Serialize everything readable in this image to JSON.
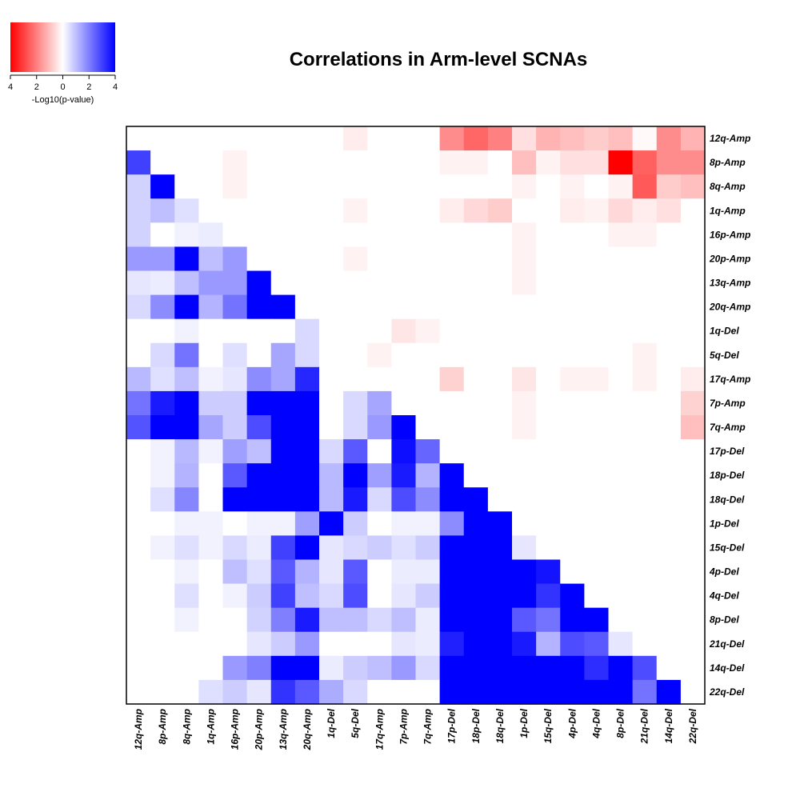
{
  "chart_data": {
    "type": "heatmap",
    "title": "Correlations in Arm-level SCNAs",
    "labels": [
      "12q-Amp",
      "8p-Amp",
      "8q-Amp",
      "1q-Amp",
      "16p-Amp",
      "20p-Amp",
      "13q-Amp",
      "20q-Amp",
      "1q-Del",
      "5q-Del",
      "17q-Amp",
      "7p-Amp",
      "7q-Amp",
      "17p-Del",
      "18p-Del",
      "18q-Del",
      "1p-Del",
      "15q-Del",
      "4p-Del",
      "4q-Del",
      "8p-Del",
      "21q-Del",
      "14q-Del",
      "22q-Del"
    ],
    "value_note": "signed -Log10(p-value): positive = blue, negative = red",
    "values": [
      [
        0,
        0,
        0,
        0,
        0,
        0,
        0,
        0,
        0,
        -0.3,
        0,
        0,
        0,
        -1.8,
        -2.4,
        -2.0,
        -0.5,
        -1.2,
        -1.0,
        -0.8,
        -1.0,
        -0.1,
        -1.8,
        -1.2
      ],
      [
        3.0,
        0,
        0,
        0,
        -0.2,
        0,
        0,
        0,
        0,
        0,
        0,
        0,
        0,
        -0.2,
        -0.2,
        0,
        -1.0,
        -0.2,
        -0.5,
        -0.5,
        -4.0,
        -2.5,
        -1.8,
        -1.8
      ],
      [
        0.7,
        4.0,
        0,
        0,
        -0.2,
        0,
        0,
        0,
        0,
        0,
        0,
        0,
        0,
        0,
        0,
        0,
        -0.2,
        0,
        -0.2,
        0,
        -0.2,
        -2.6,
        -0.8,
        -1.0
      ],
      [
        0.7,
        1.0,
        0.5,
        0,
        0,
        0,
        0,
        0,
        0,
        -0.2,
        0,
        0,
        0,
        -0.3,
        -0.6,
        -0.8,
        0,
        0,
        -0.3,
        -0.2,
        -0.6,
        -0.3,
        -0.5,
        0
      ],
      [
        0.7,
        0,
        0.2,
        0.3,
        0,
        0,
        0,
        0,
        0,
        0,
        0,
        0,
        0,
        0,
        0,
        0,
        -0.2,
        0,
        0,
        0,
        -0.2,
        -0.2,
        0,
        0
      ],
      [
        1.6,
        1.6,
        4.0,
        1.0,
        1.6,
        0,
        0,
        0,
        0,
        -0.2,
        0,
        0,
        0,
        0,
        0,
        0,
        -0.2,
        0,
        0,
        0,
        0,
        0,
        0,
        0
      ],
      [
        0.4,
        0.3,
        1.0,
        1.6,
        1.6,
        4.0,
        0,
        0,
        0,
        0,
        0,
        0,
        0,
        0,
        0,
        0,
        -0.2,
        0,
        0,
        0,
        0,
        0,
        0,
        0
      ],
      [
        0.6,
        1.8,
        4.0,
        1.2,
        2.2,
        4.0,
        4.0,
        0,
        0,
        0,
        0,
        0,
        0,
        0,
        0,
        0,
        0,
        0,
        0,
        0,
        0,
        0,
        0,
        0
      ],
      [
        0,
        0,
        0.2,
        0,
        0,
        0,
        0,
        0.6,
        0,
        0,
        0,
        -0.4,
        -0.2,
        0,
        0,
        0,
        0,
        0,
        0,
        0,
        0,
        0,
        0,
        0
      ],
      [
        0,
        0.6,
        2.2,
        0,
        0.5,
        0,
        1.4,
        0.6,
        0,
        0,
        -0.2,
        0,
        0,
        0,
        0,
        0,
        0,
        0,
        0,
        0,
        0,
        -0.2,
        0,
        0
      ],
      [
        1.1,
        0.5,
        1.0,
        0.2,
        0.4,
        1.8,
        1.4,
        3.4,
        0,
        0,
        0,
        0,
        0,
        -0.7,
        0,
        0,
        -0.4,
        0,
        -0.2,
        -0.2,
        0,
        -0.2,
        0,
        -0.3
      ],
      [
        2.2,
        3.6,
        4.0,
        0.8,
        0.8,
        4.0,
        4.0,
        4.0,
        0,
        0.6,
        1.4,
        0,
        0,
        0,
        0,
        0,
        -0.2,
        0,
        0,
        0,
        0,
        0,
        0,
        -0.7
      ],
      [
        2.7,
        4.0,
        4.0,
        1.4,
        0.8,
        2.8,
        4.0,
        4.0,
        0,
        0.6,
        1.6,
        4.0,
        0,
        0,
        0,
        0,
        -0.2,
        0,
        0,
        0,
        0,
        0,
        0,
        -1.0
      ],
      [
        0,
        0.2,
        1.1,
        0.2,
        1.5,
        1.0,
        4.0,
        4.0,
        0.6,
        2.6,
        0,
        3.8,
        2.4,
        0,
        0,
        0,
        0,
        0,
        0,
        0,
        0,
        0,
        0,
        0
      ],
      [
        0,
        0.2,
        1.2,
        0,
        2.6,
        4.0,
        4.0,
        4.0,
        1.1,
        4.0,
        1.5,
        3.6,
        1.2,
        4.0,
        0,
        0,
        0,
        0,
        0,
        0,
        0,
        0,
        0,
        0
      ],
      [
        0,
        0.5,
        1.9,
        0,
        4.0,
        4.0,
        4.0,
        4.0,
        1.1,
        3.6,
        0.6,
        2.8,
        1.8,
        4.0,
        4.0,
        0,
        0,
        0,
        0,
        0,
        0,
        0,
        0,
        0
      ],
      [
        0,
        0,
        0.2,
        0.2,
        0,
        0.2,
        0.2,
        1.5,
        4.0,
        0.8,
        0,
        0.2,
        0.2,
        1.8,
        4.0,
        4.0,
        0,
        0,
        0,
        0,
        0,
        0,
        0,
        0
      ],
      [
        0,
        0.2,
        0.5,
        0.2,
        0.6,
        0.3,
        3.0,
        4.0,
        0.4,
        0.6,
        0.8,
        0.5,
        0.8,
        4.0,
        4.0,
        4.0,
        0.4,
        0,
        0,
        0,
        0,
        0,
        0,
        0
      ],
      [
        0,
        0,
        0.2,
        0,
        1.0,
        0.5,
        2.6,
        1.2,
        0.4,
        2.6,
        0,
        0.3,
        0.3,
        4.0,
        4.0,
        4.0,
        4.0,
        3.7,
        0,
        0,
        0,
        0,
        0,
        0
      ],
      [
        0,
        0,
        0.5,
        0,
        0.2,
        0.8,
        3.0,
        1.0,
        0.6,
        2.8,
        0,
        0.4,
        0.8,
        4.0,
        4.0,
        4.0,
        4.0,
        3.2,
        4.0,
        0,
        0,
        0,
        0,
        0
      ],
      [
        0,
        0,
        0.2,
        0,
        0,
        0.7,
        2.0,
        3.6,
        1.0,
        1.0,
        0.6,
        1.0,
        0.3,
        4.0,
        4.0,
        4.0,
        2.6,
        2.2,
        4.0,
        4.0,
        0,
        0,
        0,
        0
      ],
      [
        0,
        0,
        0,
        0,
        0,
        0.4,
        0.8,
        1.6,
        0,
        0,
        0,
        0.4,
        0.3,
        3.5,
        4.0,
        4.0,
        3.6,
        1.2,
        2.8,
        2.6,
        0.4,
        0,
        0,
        0
      ],
      [
        0,
        0,
        0,
        0,
        1.6,
        2.0,
        4.0,
        4.0,
        0.3,
        0.8,
        1.0,
        1.6,
        0.6,
        4.0,
        4.0,
        4.0,
        4.0,
        4.0,
        4.0,
        3.3,
        4.0,
        2.8,
        0,
        0
      ],
      [
        0,
        0,
        0,
        0.5,
        0.8,
        0.4,
        3.2,
        2.6,
        1.3,
        0.6,
        0,
        0,
        0,
        4.0,
        4.0,
        4.0,
        4.0,
        4.0,
        4.0,
        4.0,
        4.0,
        2.2,
        4.0,
        0
      ]
    ],
    "color_scale": {
      "neg": "#ff0000",
      "mid": "#ffffff",
      "pos": "#0000ff",
      "range": [
        -4,
        4
      ]
    },
    "legend": {
      "ticks": [
        "4",
        "2",
        "0",
        "2",
        "4"
      ],
      "label": "-Log10(p-value)",
      "placement": "top-left"
    }
  }
}
